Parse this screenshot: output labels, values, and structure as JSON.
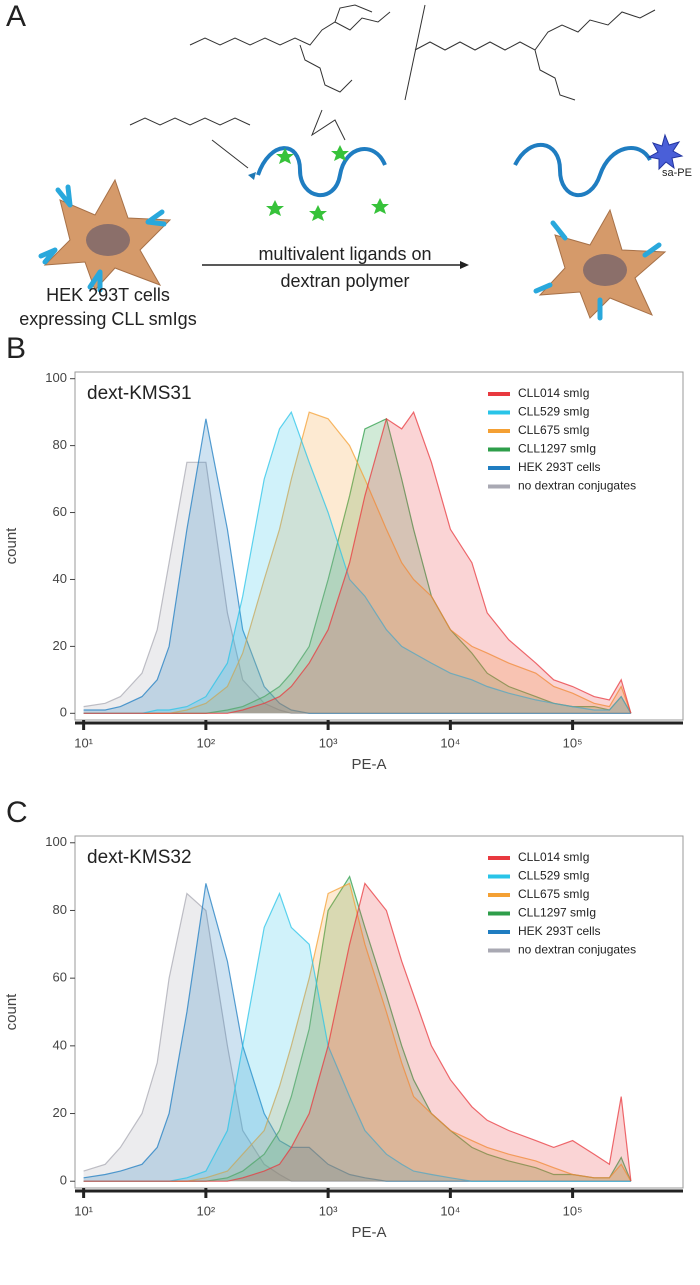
{
  "panel_a": {
    "label": "A",
    "cells_label": [
      "HEK 293T cells",
      "expressing CLL smIgs"
    ],
    "arrow_label": [
      "multivalent ligands on",
      "dextran polymer"
    ],
    "probe_label": "sa-PE"
  },
  "chart_data": [
    {
      "type": "area",
      "panel_label": "B",
      "title": "dext-KMS31",
      "x_label": "PE-A",
      "y_label": "count",
      "xscale": "log",
      "legend": "upper right",
      "xlim": [
        8.5,
        800000
      ],
      "ylim": [
        -2,
        102
      ],
      "xticks": [
        {
          "value": 10,
          "label": "10¹"
        },
        {
          "value": 100,
          "label": "10²"
        },
        {
          "value": 1000,
          "label": "10³"
        },
        {
          "value": 10000,
          "label": "10⁴"
        },
        {
          "value": 100000,
          "label": "10⁵"
        }
      ],
      "yticks": [
        0,
        20,
        40,
        60,
        80,
        100
      ],
      "x": [
        10,
        15,
        20,
        30,
        40,
        50,
        70,
        100,
        150,
        200,
        300,
        400,
        500,
        700,
        1000,
        1500,
        2000,
        3000,
        4000,
        5000,
        7000,
        10000,
        15000,
        20000,
        30000,
        50000,
        70000,
        100000,
        150000,
        200000,
        250000,
        300000
      ],
      "series": [
        {
          "name": "CLL014 smIg",
          "color": "#e8393f",
          "values": [
            0,
            0,
            0,
            0,
            0,
            0,
            0,
            0,
            0,
            1,
            3,
            5,
            8,
            15,
            25,
            45,
            65,
            88,
            85,
            90,
            75,
            55,
            45,
            30,
            22,
            15,
            10,
            8,
            5,
            4,
            10,
            0
          ]
        },
        {
          "name": "CLL529 smIg",
          "color": "#29c4e8",
          "values": [
            0,
            0,
            0,
            0,
            1,
            1,
            2,
            5,
            15,
            35,
            70,
            85,
            90,
            75,
            60,
            40,
            35,
            25,
            20,
            18,
            15,
            12,
            10,
            8,
            6,
            4,
            3,
            2,
            1,
            1,
            5,
            0
          ]
        },
        {
          "name": "CLL675 smIg",
          "color": "#f4a034",
          "values": [
            0,
            0,
            0,
            0,
            0,
            0,
            1,
            3,
            8,
            18,
            40,
            55,
            70,
            90,
            88,
            80,
            70,
            55,
            45,
            40,
            35,
            25,
            20,
            18,
            15,
            12,
            8,
            6,
            3,
            2,
            8,
            0
          ]
        },
        {
          "name": "CLL1297 smIg",
          "color": "#2e9e4a",
          "values": [
            0,
            0,
            0,
            0,
            0,
            0,
            0,
            0,
            1,
            2,
            5,
            8,
            12,
            20,
            40,
            65,
            85,
            88,
            70,
            55,
            35,
            25,
            18,
            12,
            8,
            5,
            3,
            2,
            2,
            1,
            5,
            0
          ]
        },
        {
          "name": "HEK 293T cells",
          "color": "#1f7dc1",
          "values": [
            1,
            1,
            2,
            5,
            10,
            20,
            55,
            88,
            55,
            25,
            8,
            3,
            1,
            0,
            0,
            0,
            0,
            0,
            0,
            0,
            0,
            0,
            0,
            0,
            0,
            0,
            0,
            0,
            0,
            0,
            0,
            0
          ]
        },
        {
          "name": "no dextran conjugates",
          "color": "#a9a9b3",
          "values": [
            2,
            3,
            5,
            12,
            25,
            45,
            75,
            75,
            30,
            10,
            3,
            1,
            0,
            0,
            0,
            0,
            0,
            0,
            0,
            0,
            0,
            0,
            0,
            0,
            0,
            0,
            0,
            0,
            0,
            0,
            0,
            0
          ]
        }
      ]
    },
    {
      "type": "area",
      "panel_label": "C",
      "title": "dext-KMS32",
      "x_label": "PE-A",
      "y_label": "count",
      "xscale": "log",
      "legend": "upper right",
      "xlim": [
        8.5,
        800000
      ],
      "ylim": [
        -2,
        102
      ],
      "xticks": [
        {
          "value": 10,
          "label": "10¹"
        },
        {
          "value": 100,
          "label": "10²"
        },
        {
          "value": 1000,
          "label": "10³"
        },
        {
          "value": 10000,
          "label": "10⁴"
        },
        {
          "value": 100000,
          "label": "10⁵"
        }
      ],
      "yticks": [
        0,
        20,
        40,
        60,
        80,
        100
      ],
      "x": [
        10,
        15,
        20,
        30,
        40,
        50,
        70,
        100,
        150,
        200,
        300,
        400,
        500,
        700,
        1000,
        1500,
        2000,
        3000,
        4000,
        5000,
        7000,
        10000,
        15000,
        20000,
        30000,
        50000,
        70000,
        100000,
        150000,
        200000,
        250000,
        300000
      ],
      "series": [
        {
          "name": "CLL014 smIg",
          "color": "#e8393f",
          "values": [
            0,
            0,
            0,
            0,
            0,
            0,
            0,
            0,
            0,
            1,
            3,
            5,
            10,
            20,
            40,
            70,
            88,
            80,
            65,
            55,
            40,
            30,
            22,
            18,
            15,
            12,
            10,
            12,
            8,
            5,
            25,
            0
          ]
        },
        {
          "name": "CLL529 smIg",
          "color": "#29c4e8",
          "values": [
            0,
            0,
            0,
            0,
            0,
            0,
            1,
            3,
            15,
            40,
            75,
            85,
            75,
            70,
            40,
            25,
            15,
            8,
            5,
            3,
            2,
            1,
            0,
            0,
            0,
            0,
            0,
            0,
            0,
            0,
            0,
            0
          ]
        },
        {
          "name": "CLL675 smIg",
          "color": "#f4a034",
          "values": [
            0,
            0,
            0,
            0,
            0,
            0,
            0,
            1,
            3,
            8,
            15,
            28,
            40,
            60,
            85,
            88,
            70,
            50,
            35,
            25,
            20,
            15,
            12,
            10,
            8,
            6,
            4,
            2,
            1,
            1,
            5,
            0
          ]
        },
        {
          "name": "CLL1297 smIg",
          "color": "#2e9e4a",
          "values": [
            0,
            0,
            0,
            0,
            0,
            0,
            0,
            0,
            1,
            3,
            8,
            15,
            25,
            45,
            80,
            90,
            75,
            55,
            40,
            30,
            20,
            15,
            10,
            8,
            6,
            4,
            2,
            2,
            1,
            1,
            7,
            0
          ]
        },
        {
          "name": "HEK 293T cells",
          "color": "#1f7dc1",
          "values": [
            1,
            2,
            3,
            5,
            10,
            20,
            50,
            88,
            65,
            40,
            20,
            12,
            10,
            10,
            5,
            2,
            1,
            0,
            0,
            0,
            0,
            0,
            0,
            0,
            0,
            0,
            0,
            0,
            0,
            0,
            0,
            0
          ]
        },
        {
          "name": "no dextran conjugates",
          "color": "#a9a9b3",
          "values": [
            3,
            5,
            10,
            20,
            35,
            60,
            85,
            80,
            40,
            15,
            5,
            2,
            0,
            0,
            0,
            0,
            0,
            0,
            0,
            0,
            0,
            0,
            0,
            0,
            0,
            0,
            0,
            0,
            0,
            0,
            0,
            0
          ]
        }
      ]
    }
  ]
}
